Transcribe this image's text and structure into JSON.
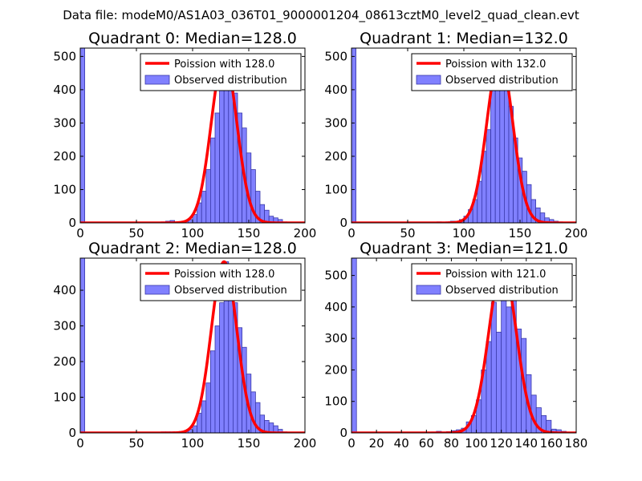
{
  "suptitle": "Data file: modeM0/AS1A03_036T01_9000001204_08613cztM0_level2_quad_clean.evt",
  "colors": {
    "bar_fill": "#8080ff",
    "bar_edge": "#3838a8",
    "fit_line": "#ff0000",
    "axis": "#000000",
    "background": "#ffffff"
  },
  "chart_data": [
    {
      "type": "bar",
      "title": "Quadrant 0: Median=128.0",
      "xlabel": "",
      "ylabel": "",
      "xlim": [
        0,
        200
      ],
      "ylim": [
        0,
        525
      ],
      "xticks": [
        0,
        50,
        100,
        150,
        200
      ],
      "yticks": [
        0,
        100,
        200,
        300,
        400,
        500
      ],
      "bin_width": 4,
      "bins": [
        [
          0,
          525
        ],
        [
          72,
          3
        ],
        [
          76,
          5
        ],
        [
          80,
          7
        ],
        [
          84,
          3
        ],
        [
          88,
          4
        ],
        [
          92,
          5
        ],
        [
          96,
          10
        ],
        [
          100,
          25
        ],
        [
          104,
          60
        ],
        [
          108,
          95
        ],
        [
          112,
          160
        ],
        [
          116,
          255
        ],
        [
          120,
          330
        ],
        [
          124,
          425
        ],
        [
          128,
          500
        ],
        [
          132,
          445
        ],
        [
          136,
          390
        ],
        [
          140,
          330
        ],
        [
          144,
          285
        ],
        [
          148,
          210
        ],
        [
          152,
          160
        ],
        [
          156,
          95
        ],
        [
          160,
          55
        ],
        [
          164,
          38
        ],
        [
          168,
          20
        ],
        [
          172,
          15
        ],
        [
          176,
          10
        ],
        [
          180,
          3
        ],
        [
          184,
          2
        ],
        [
          188,
          1
        ]
      ],
      "legend": [
        "Poission with 128.0",
        "Observed distribution"
      ],
      "legend_loc": "upper right",
      "fit": {
        "mean": 128.0,
        "peak": 500
      }
    },
    {
      "type": "bar",
      "title": "Quadrant 1: Median=132.0",
      "xlabel": "",
      "ylabel": "",
      "xlim": [
        0,
        200
      ],
      "ylim": [
        0,
        525
      ],
      "xticks": [
        0,
        50,
        100,
        150,
        200
      ],
      "yticks": [
        0,
        100,
        200,
        300,
        400,
        500
      ],
      "bin_width": 4,
      "bins": [
        [
          0,
          525
        ],
        [
          72,
          2
        ],
        [
          76,
          3
        ],
        [
          84,
          3
        ],
        [
          88,
          5
        ],
        [
          92,
          5
        ],
        [
          96,
          10
        ],
        [
          100,
          20
        ],
        [
          104,
          40
        ],
        [
          108,
          70
        ],
        [
          112,
          125
        ],
        [
          116,
          215
        ],
        [
          120,
          280
        ],
        [
          124,
          410
        ],
        [
          128,
          460
        ],
        [
          132,
          490
        ],
        [
          136,
          425
        ],
        [
          140,
          350
        ],
        [
          144,
          255
        ],
        [
          148,
          195
        ],
        [
          152,
          155
        ],
        [
          156,
          115
        ],
        [
          160,
          70
        ],
        [
          164,
          45
        ],
        [
          168,
          30
        ],
        [
          172,
          15
        ],
        [
          176,
          10
        ],
        [
          180,
          5
        ],
        [
          184,
          3
        ],
        [
          188,
          2
        ],
        [
          192,
          2
        ],
        [
          196,
          1
        ]
      ],
      "legend": [
        "Poission with 132.0",
        "Observed distribution"
      ],
      "legend_loc": "upper right",
      "fit": {
        "mean": 132.0,
        "peak": 500
      }
    },
    {
      "type": "bar",
      "title": "Quadrant 2: Median=128.0",
      "xlabel": "",
      "ylabel": "",
      "xlim": [
        0,
        200
      ],
      "ylim": [
        0,
        490
      ],
      "xticks": [
        0,
        50,
        100,
        150,
        200
      ],
      "yticks": [
        0,
        100,
        200,
        300,
        400
      ],
      "bin_width": 4,
      "bins": [
        [
          0,
          490
        ],
        [
          72,
          3
        ],
        [
          76,
          3
        ],
        [
          80,
          3
        ],
        [
          84,
          3
        ],
        [
          88,
          4
        ],
        [
          92,
          5
        ],
        [
          96,
          10
        ],
        [
          100,
          20
        ],
        [
          104,
          55
        ],
        [
          108,
          90
        ],
        [
          112,
          140
        ],
        [
          116,
          230
        ],
        [
          120,
          300
        ],
        [
          124,
          365
        ],
        [
          128,
          480
        ],
        [
          132,
          460
        ],
        [
          136,
          365
        ],
        [
          140,
          295
        ],
        [
          144,
          240
        ],
        [
          148,
          165
        ],
        [
          152,
          115
        ],
        [
          156,
          85
        ],
        [
          160,
          50
        ],
        [
          164,
          35
        ],
        [
          168,
          28
        ],
        [
          172,
          20
        ],
        [
          176,
          10
        ],
        [
          180,
          3
        ],
        [
          184,
          2
        ],
        [
          188,
          1
        ]
      ],
      "legend": [
        "Poission with 128.0",
        "Observed distribution"
      ],
      "legend_loc": "upper right",
      "fit": {
        "mean": 128.0,
        "peak": 480
      }
    },
    {
      "type": "bar",
      "title": "Quadrant 3: Median=121.0",
      "xlabel": "",
      "ylabel": "",
      "xlim": [
        0,
        180
      ],
      "ylim": [
        0,
        555
      ],
      "xticks": [
        0,
        20,
        40,
        60,
        80,
        100,
        120,
        140,
        160,
        180
      ],
      "yticks": [
        0,
        100,
        200,
        300,
        400,
        500
      ],
      "bin_width": 4,
      "bins": [
        [
          0,
          555
        ],
        [
          64,
          3
        ],
        [
          68,
          5
        ],
        [
          72,
          3
        ],
        [
          76,
          4
        ],
        [
          80,
          7
        ],
        [
          84,
          10
        ],
        [
          88,
          15
        ],
        [
          92,
          35
        ],
        [
          96,
          55
        ],
        [
          100,
          105
        ],
        [
          104,
          200
        ],
        [
          108,
          290
        ],
        [
          112,
          415
        ],
        [
          116,
          320
        ],
        [
          120,
          500
        ],
        [
          124,
          400
        ],
        [
          128,
          420
        ],
        [
          132,
          330
        ],
        [
          136,
          300
        ],
        [
          140,
          185
        ],
        [
          144,
          120
        ],
        [
          148,
          80
        ],
        [
          152,
          55
        ],
        [
          156,
          40
        ],
        [
          160,
          12
        ],
        [
          164,
          10
        ],
        [
          168,
          5
        ],
        [
          172,
          2
        ],
        [
          176,
          1
        ]
      ],
      "legend": [
        "Poission with 121.0",
        "Observed distribution"
      ],
      "legend_loc": "upper right",
      "fit": {
        "mean": 121.0,
        "peak": 530
      }
    }
  ]
}
